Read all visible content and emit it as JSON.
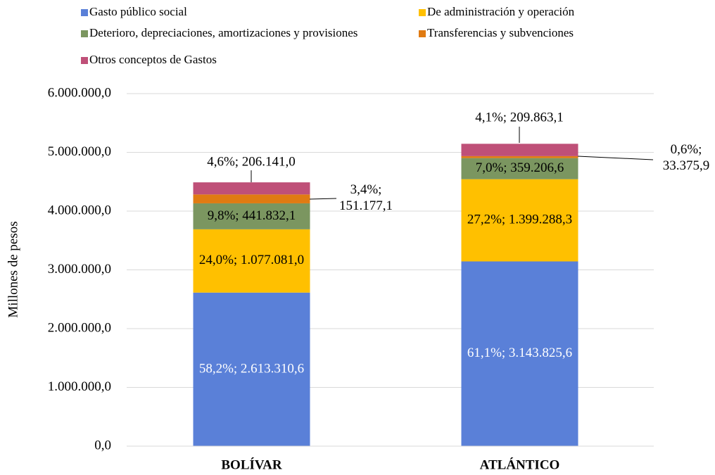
{
  "chart_data": {
    "type": "stacked_bar",
    "y_label": "Millones  de pesos",
    "categories": [
      "BOLÍVAR",
      "ATLÁNTICO"
    ],
    "ylim": [
      0,
      6000000
    ],
    "yticks": [
      {
        "value": 0,
        "label": "0,0"
      },
      {
        "value": 1000000,
        "label": "1.000.000,0"
      },
      {
        "value": 2000000,
        "label": "2.000.000,0"
      },
      {
        "value": 3000000,
        "label": "3.000.000,0"
      },
      {
        "value": 4000000,
        "label": "4.000.000,0"
      },
      {
        "value": 5000000,
        "label": "5.000.000,0"
      },
      {
        "value": 6000000,
        "label": "6.000.000,0"
      }
    ],
    "grid": true,
    "legend": "top",
    "series": [
      {
        "name": "Gasto público social",
        "color": "#5a80d8",
        "values": [
          2613310.6,
          3143825.6
        ],
        "value_labels": [
          "58,2%; 2.613.310,6",
          "61,1%; 3.143.825,6"
        ]
      },
      {
        "name": "De administración y operación",
        "color": "#ffc000",
        "values": [
          1077081.0,
          1399288.3
        ],
        "value_labels": [
          "24,0%; 1.077.081,0",
          "27,2%; 1.399.288,3"
        ]
      },
      {
        "name": "Deterioro, depreciaciones, amortizaciones y provisiones",
        "color": "#7b9660",
        "values": [
          441832.1,
          359206.6
        ],
        "value_labels": [
          "9,8%; 441.832,1",
          "7,0%; 359.206,6"
        ]
      },
      {
        "name": "Transferencias y subvenciones",
        "color": "#e07b12",
        "values": [
          151177.1,
          33375.9
        ],
        "value_labels": [
          "3,4%; 151.177,1",
          "0,6%; 33.375,9"
        ]
      },
      {
        "name": "Otros conceptos de Gastos",
        "color": "#bf5078",
        "values": [
          206141.0,
          209863.1
        ],
        "value_labels": [
          "4,6%; 206.141,0",
          "4,1%; 209.863,1"
        ]
      }
    ]
  }
}
